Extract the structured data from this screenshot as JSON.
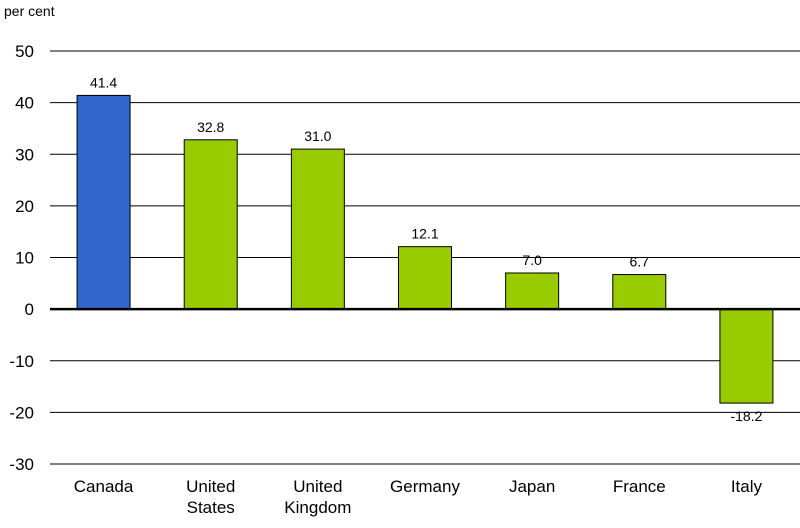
{
  "chart_data": {
    "type": "bar",
    "title": "",
    "xlabel": "",
    "ylabel": "per cent",
    "ylim": [
      -30,
      50
    ],
    "yticks": [
      50,
      40,
      30,
      20,
      10,
      0,
      -10,
      -20,
      -30
    ],
    "grid": true,
    "categories": [
      [
        "Canada"
      ],
      [
        "United",
        "States"
      ],
      [
        "United",
        "Kingdom"
      ],
      [
        "Germany"
      ],
      [
        "Japan"
      ],
      [
        "France"
      ],
      [
        "Italy"
      ]
    ],
    "values": [
      41.4,
      32.8,
      31.0,
      12.1,
      7.0,
      6.7,
      -18.2
    ],
    "value_labels": [
      "41.4",
      "32.8",
      "31.0",
      "12.1",
      "7.0",
      "6.7",
      "-18.2"
    ],
    "colors": {
      "highlight": "#3366cc",
      "default": "#99cc00",
      "bar_border": "#000000",
      "grid": "#000000",
      "zero_line": "#000000"
    },
    "highlight_index": 0
  }
}
